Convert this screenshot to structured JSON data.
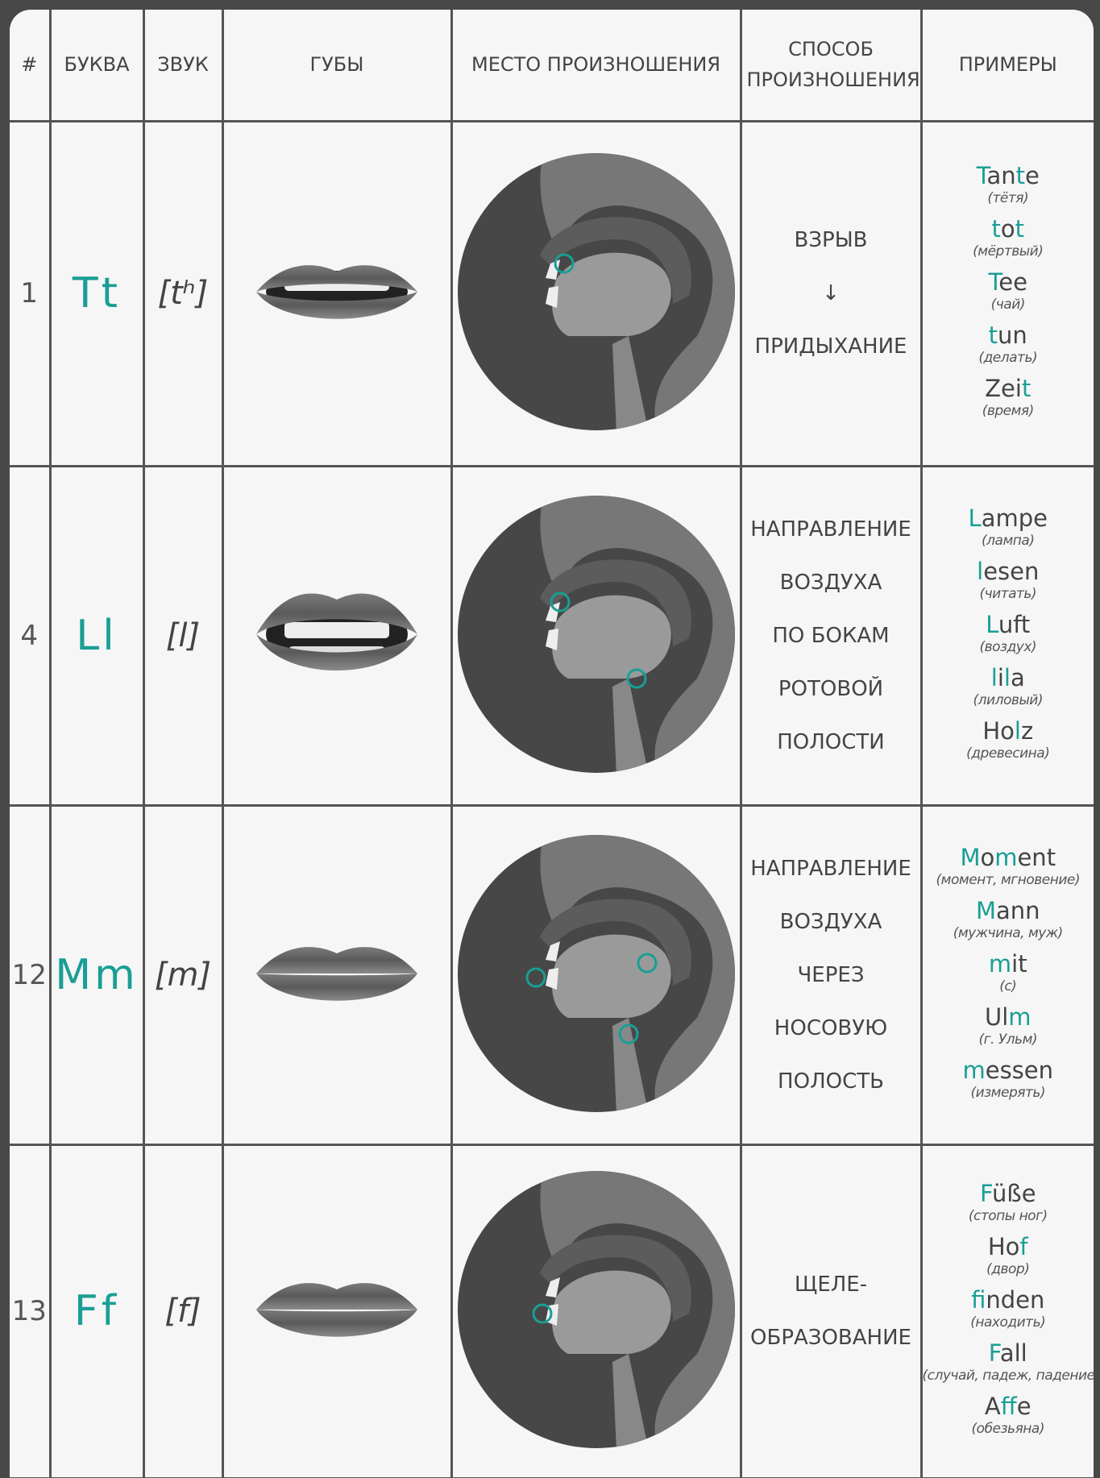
{
  "header": [
    "#",
    "БУКВА",
    "ЗВУК",
    "ГУБЫ",
    "МЕСТО ПРОИЗНОШЕНИЯ",
    "СПОСОБ ПРОИЗНОШЕНИЯ",
    "ПРИМЕРЫ"
  ],
  "rows": [
    {
      "number": "1",
      "letter": "Tt",
      "sound": "[tʰ]",
      "manner": [
        "ВЗРЫВ",
        "↓",
        "ПРИДЫХАНИЕ"
      ],
      "examples": [
        {
          "parts": [
            {
              "text": "T",
              "accent": true
            },
            {
              "text": "an"
            },
            {
              "text": "t",
              "accent": true
            },
            {
              "text": "e"
            }
          ],
          "translation": "(тётя)"
        },
        {
          "parts": [
            {
              "text": "t",
              "accent": true
            },
            {
              "text": "o"
            },
            {
              "text": "t",
              "accent": true
            }
          ],
          "translation": "(мёртвый)"
        },
        {
          "parts": [
            {
              "text": "T",
              "accent": true
            },
            {
              "text": "ee"
            }
          ],
          "translation": "(чай)"
        },
        {
          "parts": [
            {
              "text": "t",
              "accent": true
            },
            {
              "text": "un"
            }
          ],
          "translation": "(делать)"
        },
        {
          "parts": [
            {
              "text": "Zei"
            },
            {
              "text": "t",
              "accent": true
            }
          ],
          "translation": "(время)"
        }
      ]
    },
    {
      "number": "4",
      "letter": "Ll",
      "sound": "[l]",
      "manner": [
        "НАПРАВЛЕНИЕ",
        "ВОЗДУХА",
        "ПО БОКАМ",
        "РОТОВОЙ",
        "ПОЛОСТИ"
      ],
      "examples": [
        {
          "parts": [
            {
              "text": "L",
              "accent": true
            },
            {
              "text": "ampe"
            }
          ],
          "translation": "(лампа)"
        },
        {
          "parts": [
            {
              "text": "l",
              "accent": true
            },
            {
              "text": "esen"
            }
          ],
          "translation": "(читать)"
        },
        {
          "parts": [
            {
              "text": "L",
              "accent": true
            },
            {
              "text": "uft"
            }
          ],
          "translation": "(воздух)"
        },
        {
          "parts": [
            {
              "text": "l",
              "accent": true
            },
            {
              "text": "i"
            },
            {
              "text": "l",
              "accent": true
            },
            {
              "text": "a"
            }
          ],
          "translation": "(лиловый)"
        },
        {
          "parts": [
            {
              "text": "Ho"
            },
            {
              "text": "l",
              "accent": true
            },
            {
              "text": "z"
            }
          ],
          "translation": "(древесина)"
        }
      ]
    },
    {
      "number": "12",
      "letter": "Mm",
      "sound": "[m]",
      "manner": [
        "НАПРАВЛЕНИЕ",
        "ВОЗДУХА",
        "ЧЕРЕЗ",
        "НОСОВУЮ",
        "ПОЛОСТЬ"
      ],
      "examples": [
        {
          "parts": [
            {
              "text": "M",
              "accent": true
            },
            {
              "text": "o"
            },
            {
              "text": "m",
              "accent": true
            },
            {
              "text": "ent"
            }
          ],
          "translation": "(момент, мгновение)"
        },
        {
          "parts": [
            {
              "text": "M",
              "accent": true
            },
            {
              "text": "ann"
            }
          ],
          "translation": "(мужчина, муж)"
        },
        {
          "parts": [
            {
              "text": "m",
              "accent": true
            },
            {
              "text": "it"
            }
          ],
          "translation": "(с)"
        },
        {
          "parts": [
            {
              "text": "Ul"
            },
            {
              "text": "m",
              "accent": true
            }
          ],
          "translation": "(г. Ульм)"
        },
        {
          "parts": [
            {
              "text": "m",
              "accent": true
            },
            {
              "text": "essen"
            }
          ],
          "translation": "(измерять)"
        }
      ]
    },
    {
      "number": "13",
      "letter": "Ff",
      "sound": "[f]",
      "manner": [
        "ЩЕЛЕ-",
        "ОБРАЗОВАНИЕ"
      ],
      "examples": [
        {
          "parts": [
            {
              "text": "F",
              "accent": true
            },
            {
              "text": "üße"
            }
          ],
          "translation": "(стопы ног)"
        },
        {
          "parts": [
            {
              "text": "Ho"
            },
            {
              "text": "f",
              "accent": true
            }
          ],
          "translation": "(двор)"
        },
        {
          "parts": [
            {
              "text": "f",
              "accent": true
            },
            {
              "text": "inden"
            }
          ],
          "translation": "(находить)"
        },
        {
          "parts": [
            {
              "text": "F",
              "accent": true
            },
            {
              "text": "all"
            }
          ],
          "translation": "(случай, падеж, падение)"
        },
        {
          "parts": [
            {
              "text": "A"
            },
            {
              "text": "ff",
              "accent": true
            },
            {
              "text": "e"
            }
          ],
          "translation": "(обезьяна)"
        }
      ]
    }
  ]
}
